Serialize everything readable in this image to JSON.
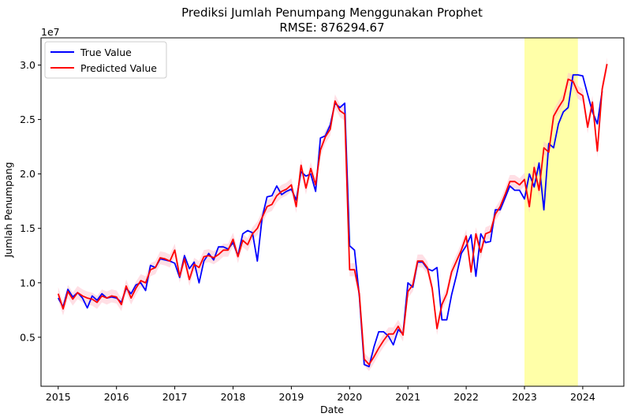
{
  "chart_data": {
    "type": "line",
    "title": "Prediksi Jumlah Penumpang Menggunakan Prophet",
    "subtitle": "RMSE: 876294.67",
    "xlabel": "Date",
    "ylabel": "Jumlah Penumpang",
    "y_offset_label": "1e7",
    "x_ticks": [
      "2015",
      "2016",
      "2017",
      "2018",
      "2019",
      "2020",
      "2021",
      "2022",
      "2023",
      "2024"
    ],
    "y_ticks": [
      "0.5",
      "1.0",
      "1.5",
      "2.0",
      "2.5",
      "3.0"
    ],
    "xlim": [
      "2014-09-15",
      "2024-09-15"
    ],
    "ylim": [
      0.05,
      3.25
    ],
    "y_unit": 10000000,
    "highlight": {
      "from": "2023-01-01",
      "to": "2023-12-01",
      "color": "#ffff99"
    },
    "band_color": "#ffc0cb",
    "legend": {
      "position": "top-left"
    },
    "series": [
      {
        "name": "True Value",
        "color": "#0000ff",
        "x": [
          "2015-01",
          "2015-02",
          "2015-03",
          "2015-04",
          "2015-05",
          "2015-06",
          "2015-07",
          "2015-08",
          "2015-09",
          "2015-10",
          "2015-11",
          "2015-12",
          "2016-01",
          "2016-02",
          "2016-03",
          "2016-04",
          "2016-05",
          "2016-06",
          "2016-07",
          "2016-08",
          "2016-09",
          "2016-10",
          "2016-11",
          "2016-12",
          "2017-01",
          "2017-02",
          "2017-03",
          "2017-04",
          "2017-05",
          "2017-06",
          "2017-07",
          "2017-08",
          "2017-09",
          "2017-10",
          "2017-11",
          "2017-12",
          "2018-01",
          "2018-02",
          "2018-03",
          "2018-04",
          "2018-05",
          "2018-06",
          "2018-07",
          "2018-08",
          "2018-09",
          "2018-10",
          "2018-11",
          "2018-12",
          "2019-01",
          "2019-02",
          "2019-03",
          "2019-04",
          "2019-05",
          "2019-06",
          "2019-07",
          "2019-08",
          "2019-09",
          "2019-10",
          "2019-11",
          "2019-12",
          "2020-01",
          "2020-02",
          "2020-03",
          "2020-04",
          "2020-05",
          "2020-06",
          "2020-07",
          "2020-08",
          "2020-09",
          "2020-10",
          "2020-11",
          "2020-12",
          "2021-01",
          "2021-02",
          "2021-03",
          "2021-04",
          "2021-05",
          "2021-06",
          "2021-07",
          "2021-08",
          "2021-09",
          "2021-10",
          "2021-11",
          "2021-12",
          "2022-01",
          "2022-02",
          "2022-03",
          "2022-04",
          "2022-05",
          "2022-06",
          "2022-07",
          "2022-08",
          "2022-09",
          "2022-10",
          "2022-11",
          "2022-12",
          "2023-01",
          "2023-02",
          "2023-03",
          "2023-04",
          "2023-05",
          "2023-06",
          "2023-07",
          "2023-08",
          "2023-09",
          "2023-10",
          "2023-11",
          "2023-12",
          "2024-01",
          "2024-02",
          "2024-03",
          "2024-04",
          "2024-05"
        ],
        "values": [
          0.86,
          0.78,
          0.94,
          0.87,
          0.91,
          0.86,
          0.77,
          0.88,
          0.84,
          0.9,
          0.86,
          0.87,
          0.86,
          0.82,
          0.95,
          0.9,
          0.98,
          1.0,
          0.93,
          1.16,
          1.14,
          1.22,
          1.21,
          1.2,
          1.18,
          1.05,
          1.25,
          1.13,
          1.19,
          1.0,
          1.2,
          1.27,
          1.21,
          1.33,
          1.33,
          1.31,
          1.37,
          1.25,
          1.45,
          1.48,
          1.46,
          1.2,
          1.6,
          1.79,
          1.8,
          1.89,
          1.81,
          1.84,
          1.86,
          1.76,
          2.02,
          1.98,
          2.0,
          1.84,
          2.33,
          2.35,
          2.45,
          2.65,
          2.61,
          2.65,
          1.34,
          1.3,
          0.88,
          0.25,
          0.23,
          0.41,
          0.55,
          0.55,
          0.51,
          0.43,
          0.57,
          0.53,
          1.0,
          0.96,
          1.19,
          1.19,
          1.13,
          1.11,
          1.14,
          0.66,
          0.66,
          0.89,
          1.07,
          1.27,
          1.34,
          1.44,
          1.06,
          1.45,
          1.37,
          1.38,
          1.67,
          1.67,
          1.78,
          1.89,
          1.85,
          1.85,
          1.77,
          2.0,
          1.88,
          2.1,
          1.67,
          2.28,
          2.24,
          2.46,
          2.57,
          2.61,
          2.91,
          2.91,
          2.9,
          2.73,
          2.57,
          2.46,
          2.76
        ]
      },
      {
        "name": "Predicted Value",
        "color": "#ff0000",
        "x": [
          "2015-01",
          "2015-02",
          "2015-03",
          "2015-04",
          "2015-05",
          "2015-06",
          "2015-07",
          "2015-08",
          "2015-09",
          "2015-10",
          "2015-11",
          "2015-12",
          "2016-01",
          "2016-02",
          "2016-03",
          "2016-04",
          "2016-05",
          "2016-06",
          "2016-07",
          "2016-08",
          "2016-09",
          "2016-10",
          "2016-11",
          "2016-12",
          "2017-01",
          "2017-02",
          "2017-03",
          "2017-04",
          "2017-05",
          "2017-06",
          "2017-07",
          "2017-08",
          "2017-09",
          "2017-10",
          "2017-11",
          "2017-12",
          "2018-01",
          "2018-02",
          "2018-03",
          "2018-04",
          "2018-05",
          "2018-06",
          "2018-07",
          "2018-08",
          "2018-09",
          "2018-10",
          "2018-11",
          "2018-12",
          "2019-01",
          "2019-02",
          "2019-03",
          "2019-04",
          "2019-05",
          "2019-06",
          "2019-07",
          "2019-08",
          "2019-09",
          "2019-10",
          "2019-11",
          "2019-12",
          "2020-01",
          "2020-02",
          "2020-03",
          "2020-04",
          "2020-05",
          "2020-06",
          "2020-07",
          "2020-08",
          "2020-09",
          "2020-10",
          "2020-11",
          "2020-12",
          "2021-01",
          "2021-02",
          "2021-03",
          "2021-04",
          "2021-05",
          "2021-06",
          "2021-07",
          "2021-08",
          "2021-09",
          "2021-10",
          "2021-11",
          "2021-12",
          "2022-01",
          "2022-02",
          "2022-03",
          "2022-04",
          "2022-05",
          "2022-06",
          "2022-07",
          "2022-08",
          "2022-09",
          "2022-10",
          "2022-11",
          "2022-12",
          "2023-01",
          "2023-02",
          "2023-03",
          "2023-04",
          "2023-05",
          "2023-06",
          "2023-07",
          "2023-08",
          "2023-09",
          "2023-10",
          "2023-11",
          "2023-12",
          "2024-01",
          "2024-02",
          "2024-03",
          "2024-04",
          "2024-05",
          "2024-06"
        ],
        "values": [
          0.9,
          0.76,
          0.92,
          0.85,
          0.91,
          0.88,
          0.86,
          0.85,
          0.82,
          0.88,
          0.86,
          0.88,
          0.87,
          0.8,
          0.97,
          0.86,
          0.95,
          1.02,
          1.0,
          1.12,
          1.14,
          1.23,
          1.22,
          1.2,
          1.3,
          1.06,
          1.22,
          1.03,
          1.17,
          1.14,
          1.24,
          1.25,
          1.23,
          1.26,
          1.3,
          1.3,
          1.4,
          1.24,
          1.39,
          1.35,
          1.45,
          1.5,
          1.6,
          1.7,
          1.72,
          1.8,
          1.84,
          1.86,
          1.9,
          1.7,
          2.08,
          1.87,
          2.05,
          1.9,
          2.22,
          2.34,
          2.41,
          2.67,
          2.58,
          2.55,
          1.12,
          1.12,
          0.9,
          0.3,
          0.25,
          0.32,
          0.4,
          0.47,
          0.53,
          0.53,
          0.6,
          0.52,
          0.92,
          0.98,
          1.2,
          1.2,
          1.14,
          0.95,
          0.58,
          0.8,
          0.9,
          1.1,
          1.2,
          1.3,
          1.43,
          1.1,
          1.45,
          1.28,
          1.45,
          1.47,
          1.63,
          1.7,
          1.81,
          1.93,
          1.93,
          1.9,
          1.95,
          1.7,
          2.06,
          1.85,
          2.24,
          2.2,
          2.53,
          2.61,
          2.68,
          2.87,
          2.85,
          2.75,
          2.72,
          2.43,
          2.66,
          2.21,
          2.78,
          3.01
        ]
      }
    ]
  }
}
